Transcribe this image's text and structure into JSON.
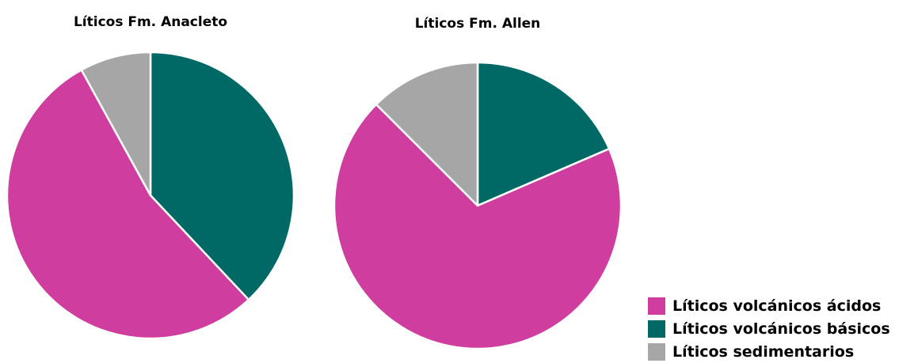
{
  "chart_data": [
    {
      "type": "pie",
      "title": "Líticos Fm. Anacleto",
      "categories": [
        "Líticos volcánicos ácidos",
        "Líticos volcánicos básicos",
        "Líticos sedimentarios"
      ],
      "values": [
        54,
        38,
        8
      ],
      "colors": [
        "#cf3e9f",
        "#006966",
        "#a6a6a6"
      ]
    },
    {
      "type": "pie",
      "title": "Líticos Fm. Allen",
      "categories": [
        "Líticos volcánicos ácidos",
        "Líticos volcánicos básicos",
        "Líticos sedimentarios"
      ],
      "values": [
        69,
        18.5,
        12.5
      ],
      "colors": [
        "#cf3e9f",
        "#006966",
        "#a6a6a6"
      ]
    }
  ],
  "legend": {
    "placement": "bottom-right",
    "items": [
      {
        "label": "Líticos volcánicos ácidos",
        "color": "#cf3e9f"
      },
      {
        "label": "Líticos volcánicos básicos",
        "color": "#006966"
      },
      {
        "label": "Líticos sedimentarios",
        "color": "#a6a6a6"
      }
    ]
  }
}
